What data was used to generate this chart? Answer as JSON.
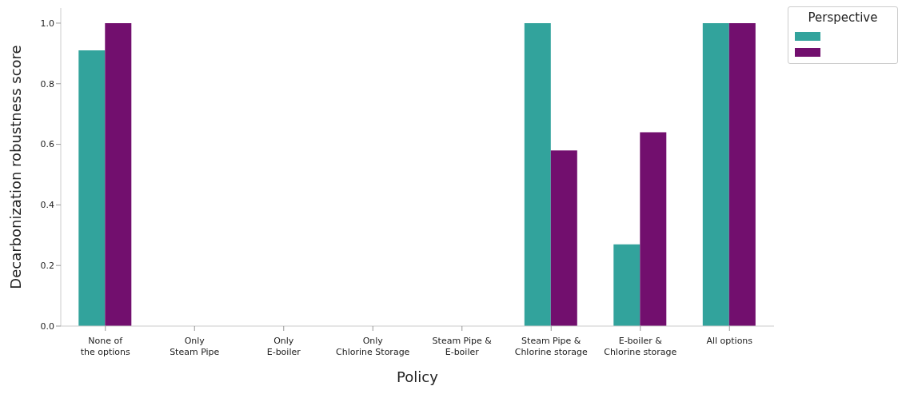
{
  "chart_data": {
    "type": "bar",
    "xlabel": "Policy",
    "ylabel": "Decarbonization robustness score",
    "legend_title": "Perspective",
    "categories": [
      "None of\nthe options",
      "Only\nSteam Pipe",
      "Only\nE-boiler",
      "Only\nChlorine Storage",
      "Steam Pipe &\nE-boiler",
      "Steam Pipe &\nChlorine storage",
      "E-boiler &\nChlorine storage",
      "All options"
    ],
    "series": [
      {
        "color": "#32a39c",
        "values": [
          0.91,
          0,
          0,
          0,
          0,
          1.0,
          0.27,
          1.0
        ]
      },
      {
        "color": "#720f6e",
        "values": [
          1.0,
          0,
          0,
          0,
          0,
          0.58,
          0.64,
          1.0
        ]
      }
    ],
    "ylim": [
      0,
      1.05
    ],
    "yticks": [
      {
        "value": 0,
        "label": "0.0"
      },
      0.2,
      0.4,
      0.6,
      0.8,
      {
        "value": 1,
        "label": "1.0"
      }
    ],
    "grid": false
  }
}
